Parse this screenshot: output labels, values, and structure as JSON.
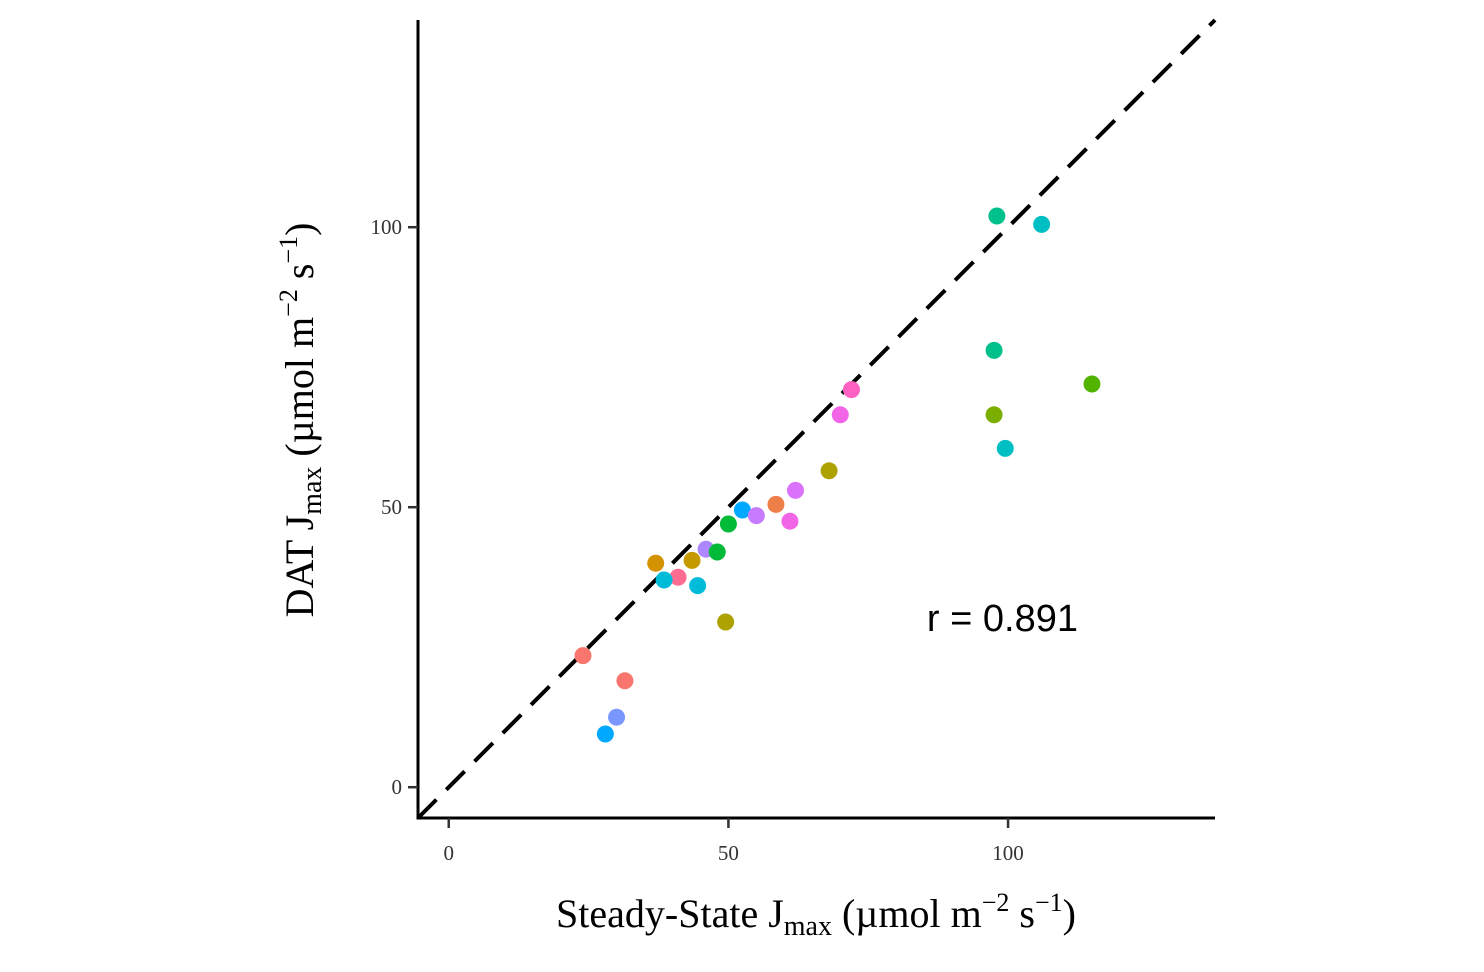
{
  "chart_data": {
    "type": "scatter",
    "title": "",
    "xlabel": {
      "main": "Steady-State J",
      "sub": "max",
      "unit_open": " (µmol m",
      "exp1": "−2",
      "unit_mid": " s",
      "exp2": "−1",
      "unit_close": ")"
    },
    "ylabel": {
      "main": "DAT J",
      "sub": "max",
      "unit_open": " (µmol m",
      "exp1": "−2",
      "unit_mid": " s",
      "exp2": "−1",
      "unit_close": ")"
    },
    "xlim": [
      -5.5,
      137
    ],
    "ylim": [
      -5.5,
      137
    ],
    "xticks": [
      0,
      50,
      100
    ],
    "yticks": [
      0,
      50,
      100
    ],
    "reference_line": {
      "type": "1:1",
      "style": "dashed",
      "color": "#000000"
    },
    "annotation": {
      "text": "r = 0.891",
      "x": 99,
      "y": 30
    },
    "grid": false,
    "legend": "none",
    "points": [
      {
        "x": 24.0,
        "y": 23.5,
        "color": "#F8766D"
      },
      {
        "x": 31.5,
        "y": 19.0,
        "color": "#F8766D"
      },
      {
        "x": 30.0,
        "y": 12.5,
        "color": "#7997FF"
      },
      {
        "x": 28.0,
        "y": 9.5,
        "color": "#00A9FF"
      },
      {
        "x": 37.0,
        "y": 40.0,
        "color": "#D39200"
      },
      {
        "x": 41.0,
        "y": 37.5,
        "color": "#FF6C91"
      },
      {
        "x": 38.5,
        "y": 37.0,
        "color": "#00BCD8"
      },
      {
        "x": 43.5,
        "y": 40.5,
        "color": "#C49A00"
      },
      {
        "x": 44.5,
        "y": 36.0,
        "color": "#00BCD8"
      },
      {
        "x": 46.0,
        "y": 42.5,
        "color": "#AE87FF"
      },
      {
        "x": 48.0,
        "y": 42.0,
        "color": "#00BA38"
      },
      {
        "x": 49.5,
        "y": 29.5,
        "color": "#AEA200"
      },
      {
        "x": 50.0,
        "y": 47.0,
        "color": "#00BA38"
      },
      {
        "x": 52.5,
        "y": 49.5,
        "color": "#00A9FF"
      },
      {
        "x": 55.0,
        "y": 48.5,
        "color": "#C77CFF"
      },
      {
        "x": 58.5,
        "y": 50.5,
        "color": "#EF7F49"
      },
      {
        "x": 61.0,
        "y": 47.5,
        "color": "#F265E7"
      },
      {
        "x": 62.0,
        "y": 53.0,
        "color": "#DB72FB"
      },
      {
        "x": 68.0,
        "y": 56.5,
        "color": "#AEA200"
      },
      {
        "x": 70.0,
        "y": 66.5,
        "color": "#F265E7"
      },
      {
        "x": 72.0,
        "y": 71.0,
        "color": "#FF61C3"
      },
      {
        "x": 97.5,
        "y": 78.0,
        "color": "#00C08B"
      },
      {
        "x": 97.5,
        "y": 66.5,
        "color": "#7CAE00"
      },
      {
        "x": 98.0,
        "y": 102.0,
        "color": "#00C08B"
      },
      {
        "x": 99.5,
        "y": 60.5,
        "color": "#00BFC4"
      },
      {
        "x": 106.0,
        "y": 100.5,
        "color": "#00BFC4"
      },
      {
        "x": 115.0,
        "y": 72.0,
        "color": "#53B400"
      }
    ]
  }
}
